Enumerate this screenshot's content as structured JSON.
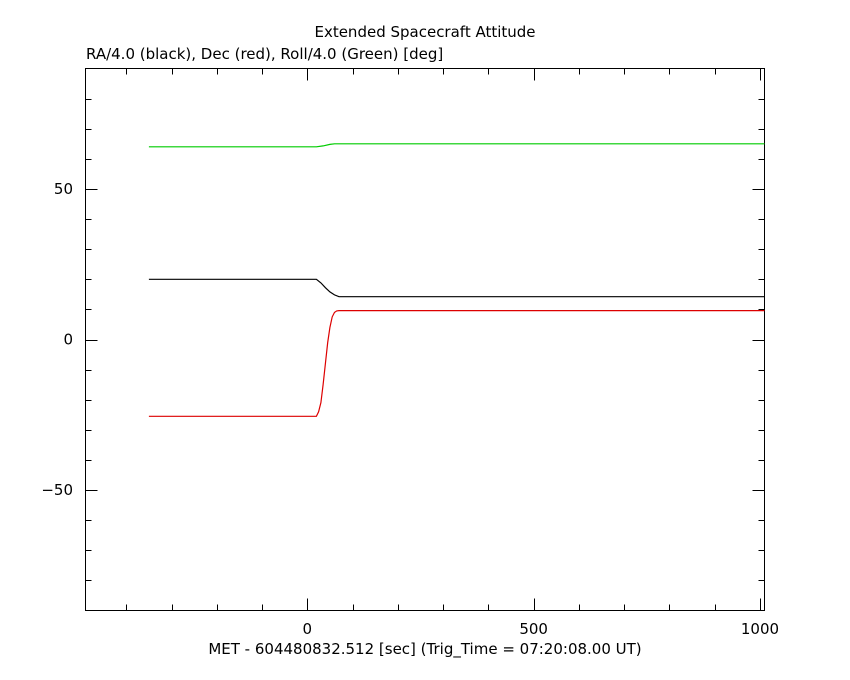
{
  "chart_data": {
    "type": "line",
    "title": "Extended Spacecraft Attitude",
    "subtitle": "RA/4.0 (black), Dec (red), Roll/4.0 (Green) [deg]",
    "xlabel": "MET - 604480832.512 [sec] (Trig_Time = 07:20:08.00 UT)",
    "xlim": [
      -490,
      1010
    ],
    "ylim": [
      -90,
      90
    ],
    "x_ticks": [
      0,
      500,
      1000
    ],
    "x_tick_labels": [
      "0",
      "500",
      "1000"
    ],
    "y_ticks": [
      -50,
      0,
      50
    ],
    "y_tick_labels": [
      "−50",
      "0",
      "50"
    ],
    "grid": false,
    "series": [
      {
        "color": "#000000",
        "x": [
          -350,
          20,
          30,
          40,
          50,
          60,
          70,
          1010
        ],
        "y": [
          20,
          20,
          18.8,
          17.2,
          15.8,
          14.8,
          14.2,
          14.2
        ]
      },
      {
        "color": "#dd0000",
        "x": [
          -350,
          20,
          25,
          30,
          35,
          40,
          45,
          50,
          55,
          60,
          65,
          70,
          75,
          1010
        ],
        "y": [
          -25.5,
          -25.5,
          -24,
          -21,
          -15,
          -8,
          -1,
          4,
          7.5,
          9,
          9.5,
          9.6,
          9.6,
          9.6
        ]
      },
      {
        "color": "#00cc00",
        "x": [
          -350,
          20,
          35,
          50,
          60,
          1010
        ],
        "y": [
          64,
          64,
          64.3,
          64.8,
          65,
          65
        ]
      }
    ]
  }
}
